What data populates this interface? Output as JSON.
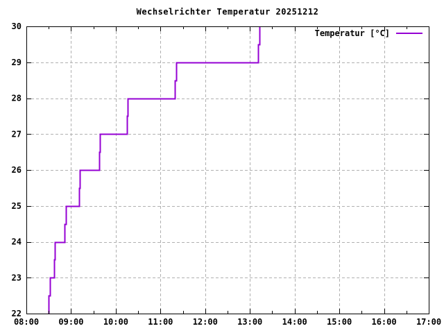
{
  "window": {
    "title": "Wechselrichter Temperatur 20251212"
  },
  "chart_data": {
    "type": "line",
    "line_style": "steps",
    "title": "Wechselrichter Temperatur 20251212",
    "xlabel": "",
    "ylabel": "",
    "x_unit": "time of day (HH:MM)",
    "y_unit": "degrees Celsius",
    "xlim_hours": [
      8,
      17
    ],
    "ylim": [
      22,
      30
    ],
    "x_tick_labels": [
      "08:00",
      "09:00",
      "10:00",
      "11:00",
      "12:00",
      "13:00",
      "14:00",
      "15:00",
      "16:00",
      "17:00"
    ],
    "y_tick_labels": [
      "22",
      "23",
      "24",
      "25",
      "26",
      "27",
      "28",
      "29",
      "30"
    ],
    "x_minor_tick_interval_hours": 0.5,
    "grid": true,
    "legend": {
      "label": "Temperatur [°C]",
      "position": "top-right-inside"
    },
    "colors": {
      "line": "#9400d3",
      "grid": "#b0b0b0",
      "axis": "#000000",
      "background": "#ffffff",
      "text": "#000000"
    },
    "series": [
      {
        "name": "Temperatur [°C]",
        "points_time_hours_temp_c": [
          [
            8.5,
            22.0
          ],
          [
            8.5,
            22.5
          ],
          [
            8.533,
            22.5
          ],
          [
            8.533,
            23.0
          ],
          [
            8.617,
            23.0
          ],
          [
            8.617,
            23.5
          ],
          [
            8.64,
            23.5
          ],
          [
            8.64,
            24.0
          ],
          [
            8.85,
            24.0
          ],
          [
            8.85,
            24.5
          ],
          [
            8.883,
            24.5
          ],
          [
            8.883,
            25.0
          ],
          [
            9.183,
            25.0
          ],
          [
            9.183,
            25.5
          ],
          [
            9.2,
            25.5
          ],
          [
            9.2,
            26.0
          ],
          [
            9.633,
            26.0
          ],
          [
            9.633,
            26.5
          ],
          [
            9.65,
            26.5
          ],
          [
            9.65,
            27.0
          ],
          [
            10.25,
            27.0
          ],
          [
            10.25,
            27.5
          ],
          [
            10.267,
            27.5
          ],
          [
            10.267,
            28.0
          ],
          [
            11.317,
            28.0
          ],
          [
            11.317,
            28.5
          ],
          [
            11.35,
            28.5
          ],
          [
            11.35,
            29.0
          ],
          [
            13.183,
            29.0
          ],
          [
            13.183,
            29.5
          ],
          [
            13.217,
            29.5
          ],
          [
            13.217,
            30.0
          ]
        ],
        "step_summary": [
          {
            "temp_c": 22.0,
            "at": "08:30"
          },
          {
            "temp_c": 23.0,
            "from": "08:32",
            "to": "08:37"
          },
          {
            "temp_c": 24.0,
            "from": "08:38",
            "to": "08:51"
          },
          {
            "temp_c": 25.0,
            "from": "08:53",
            "to": "09:11"
          },
          {
            "temp_c": 26.0,
            "from": "09:12",
            "to": "09:38"
          },
          {
            "temp_c": 27.0,
            "from": "09:39",
            "to": "10:15"
          },
          {
            "temp_c": 28.0,
            "from": "10:16",
            "to": "11:19"
          },
          {
            "temp_c": 29.0,
            "from": "11:21",
            "to": "13:11"
          },
          {
            "temp_c": 30.0,
            "at": "13:13"
          }
        ]
      }
    ]
  }
}
